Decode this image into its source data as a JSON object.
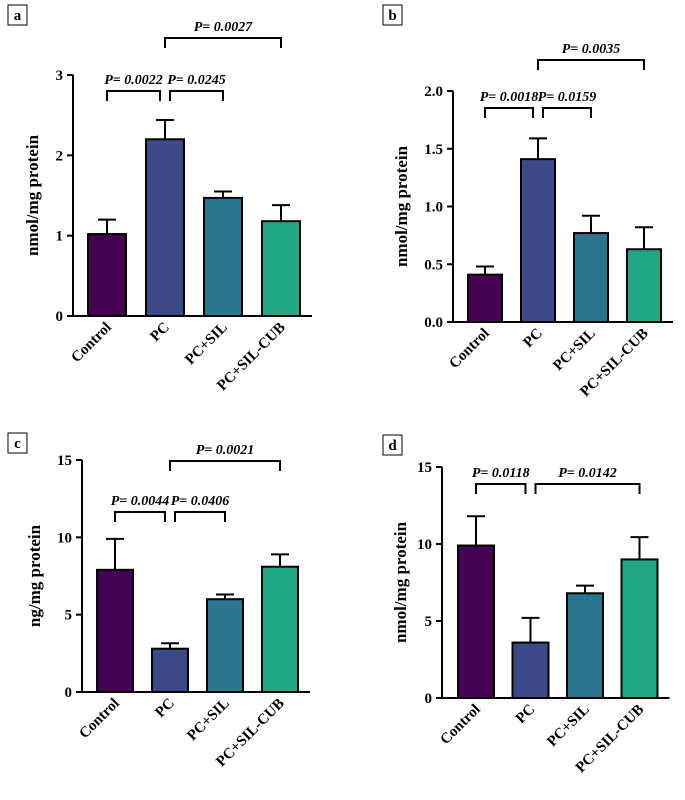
{
  "colors": {
    "control": "#440154",
    "pc": "#3d4a8a",
    "pc_sil": "#2a768e",
    "pc_sil_cub": "#22a884",
    "axis": "#000000"
  },
  "chart_data": [
    {
      "type": "bar",
      "panel": "a",
      "ylabel": "nmol/mg protein",
      "categories": [
        "Control",
        "PC",
        "PC+SIL",
        "PC+SIL-CUB"
      ],
      "values": [
        1.02,
        2.2,
        1.47,
        1.18
      ],
      "errors": [
        0.18,
        0.24,
        0.08,
        0.2
      ],
      "ylim": [
        0,
        3
      ],
      "yticks": [
        0,
        1,
        2,
        3
      ],
      "comparisons": [
        {
          "from": 1,
          "to": 3,
          "label": "P= 0.0027",
          "level": 2
        },
        {
          "from": 0,
          "to": 1,
          "label": "P= 0.0022",
          "level": 1
        },
        {
          "from": 1,
          "to": 2,
          "label": "P= 0.0245",
          "level": 1
        }
      ]
    },
    {
      "type": "bar",
      "panel": "b",
      "ylabel": "nmol/mg protein",
      "categories": [
        "Control",
        "PC",
        "PC+SIL",
        "PC+SIL-CUB"
      ],
      "values": [
        0.41,
        1.41,
        0.77,
        0.63
      ],
      "errors": [
        0.07,
        0.18,
        0.15,
        0.19
      ],
      "ylim": [
        0,
        2.0
      ],
      "yticks": [
        0.0,
        0.5,
        1.0,
        1.5,
        2.0
      ],
      "yticklabels": [
        "0.0",
        "0.5",
        "1.0",
        "1.5",
        "2.0"
      ],
      "comparisons": [
        {
          "from": 1,
          "to": 3,
          "label": "P= 0.0035",
          "level": 2
        },
        {
          "from": 0,
          "to": 1,
          "label": "P= 0.0018",
          "level": 1
        },
        {
          "from": 1,
          "to": 2,
          "label": "P= 0.0159",
          "level": 1
        }
      ]
    },
    {
      "type": "bar",
      "panel": "c",
      "ylabel": "ng/mg protein",
      "categories": [
        "Control",
        "PC",
        "PC+SIL",
        "PC+SIL-CUB"
      ],
      "values": [
        7.9,
        2.8,
        6.0,
        8.1
      ],
      "errors": [
        2.0,
        0.35,
        0.3,
        0.8
      ],
      "ylim": [
        0,
        15
      ],
      "yticks": [
        0,
        5,
        10,
        15
      ],
      "comparisons": [
        {
          "from": 1,
          "to": 3,
          "label": "P= 0.0021",
          "level": 2
        },
        {
          "from": 0,
          "to": 1,
          "label": "P= 0.0044",
          "level": 1
        },
        {
          "from": 1,
          "to": 2,
          "label": "P= 0.0406",
          "level": 1
        }
      ]
    },
    {
      "type": "bar",
      "panel": "d",
      "ylabel": "nmol/mg protein",
      "categories": [
        "Control",
        "PC",
        "PC+SIL",
        "PC+SIL-CUB"
      ],
      "values": [
        9.9,
        3.6,
        6.8,
        9.0
      ],
      "errors": [
        1.9,
        1.6,
        0.5,
        1.45
      ],
      "ylim": [
        0,
        15
      ],
      "yticks": [
        0,
        5,
        10,
        15
      ],
      "comparisons": [
        {
          "from": 0,
          "to": 1,
          "label": "P= 0.0118",
          "level": 1
        },
        {
          "from": 1,
          "to": 3,
          "label": "P= 0.0142",
          "level": 1
        }
      ]
    }
  ]
}
